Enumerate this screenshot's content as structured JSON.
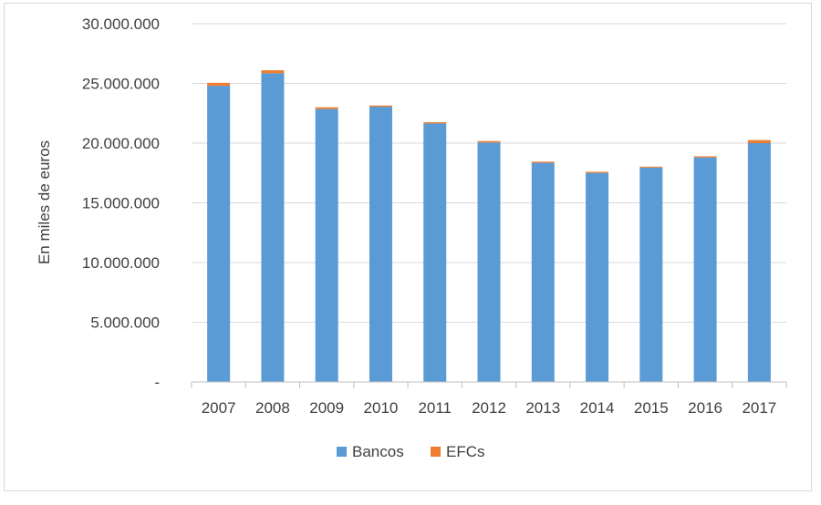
{
  "chart_data": {
    "type": "bar",
    "stacked": true,
    "categories": [
      "2007",
      "2008",
      "2009",
      "2010",
      "2011",
      "2012",
      "2013",
      "2014",
      "2015",
      "2016",
      "2017"
    ],
    "series": [
      {
        "name": "Bancos",
        "color": "#5b9bd5",
        "values": [
          24800000,
          25850000,
          22850000,
          23050000,
          21650000,
          20050000,
          18350000,
          17500000,
          17950000,
          18800000,
          20000000
        ]
      },
      {
        "name": "EFCs",
        "color": "#ed7d31",
        "values": [
          250000,
          250000,
          150000,
          100000,
          100000,
          120000,
          100000,
          100000,
          80000,
          100000,
          250000
        ]
      }
    ],
    "ylabel": "En miles de euros",
    "ylim": [
      0,
      30000000
    ],
    "yticks": [
      0,
      5000000,
      10000000,
      15000000,
      20000000,
      25000000,
      30000000
    ],
    "ytick_labels": [
      "-",
      "5.000.000",
      "10.000.000",
      "15.000.000",
      "20.000.000",
      "25.000.000",
      "30.000.000"
    ],
    "grid": true,
    "legend": "bottom"
  }
}
